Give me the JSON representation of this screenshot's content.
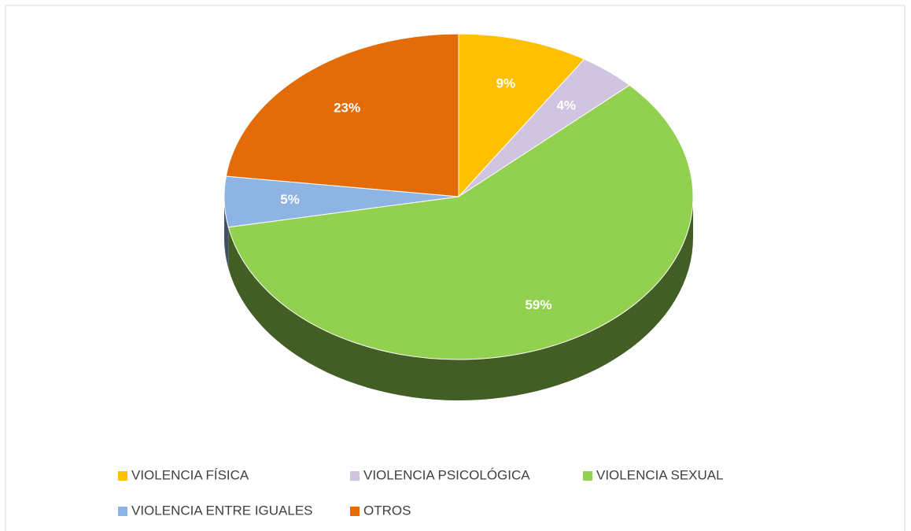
{
  "chart_data": {
    "type": "pie3d",
    "categories": [
      "VIOLENCIA FÍSICA",
      "VIOLENCIA PSICOLÓGICA",
      "VIOLENCIA SEXUAL",
      "VIOLENCIA ENTRE IGUALES",
      "OTROS"
    ],
    "values": [
      9,
      4,
      59,
      5,
      23
    ],
    "value_labels": [
      "9%",
      "4%",
      "59%",
      "5%",
      "23%"
    ],
    "colors": [
      "#ffc000",
      "#d0c4e0",
      "#92d050",
      "#8db4e2",
      "#e36c09"
    ],
    "legend": "bottom"
  }
}
